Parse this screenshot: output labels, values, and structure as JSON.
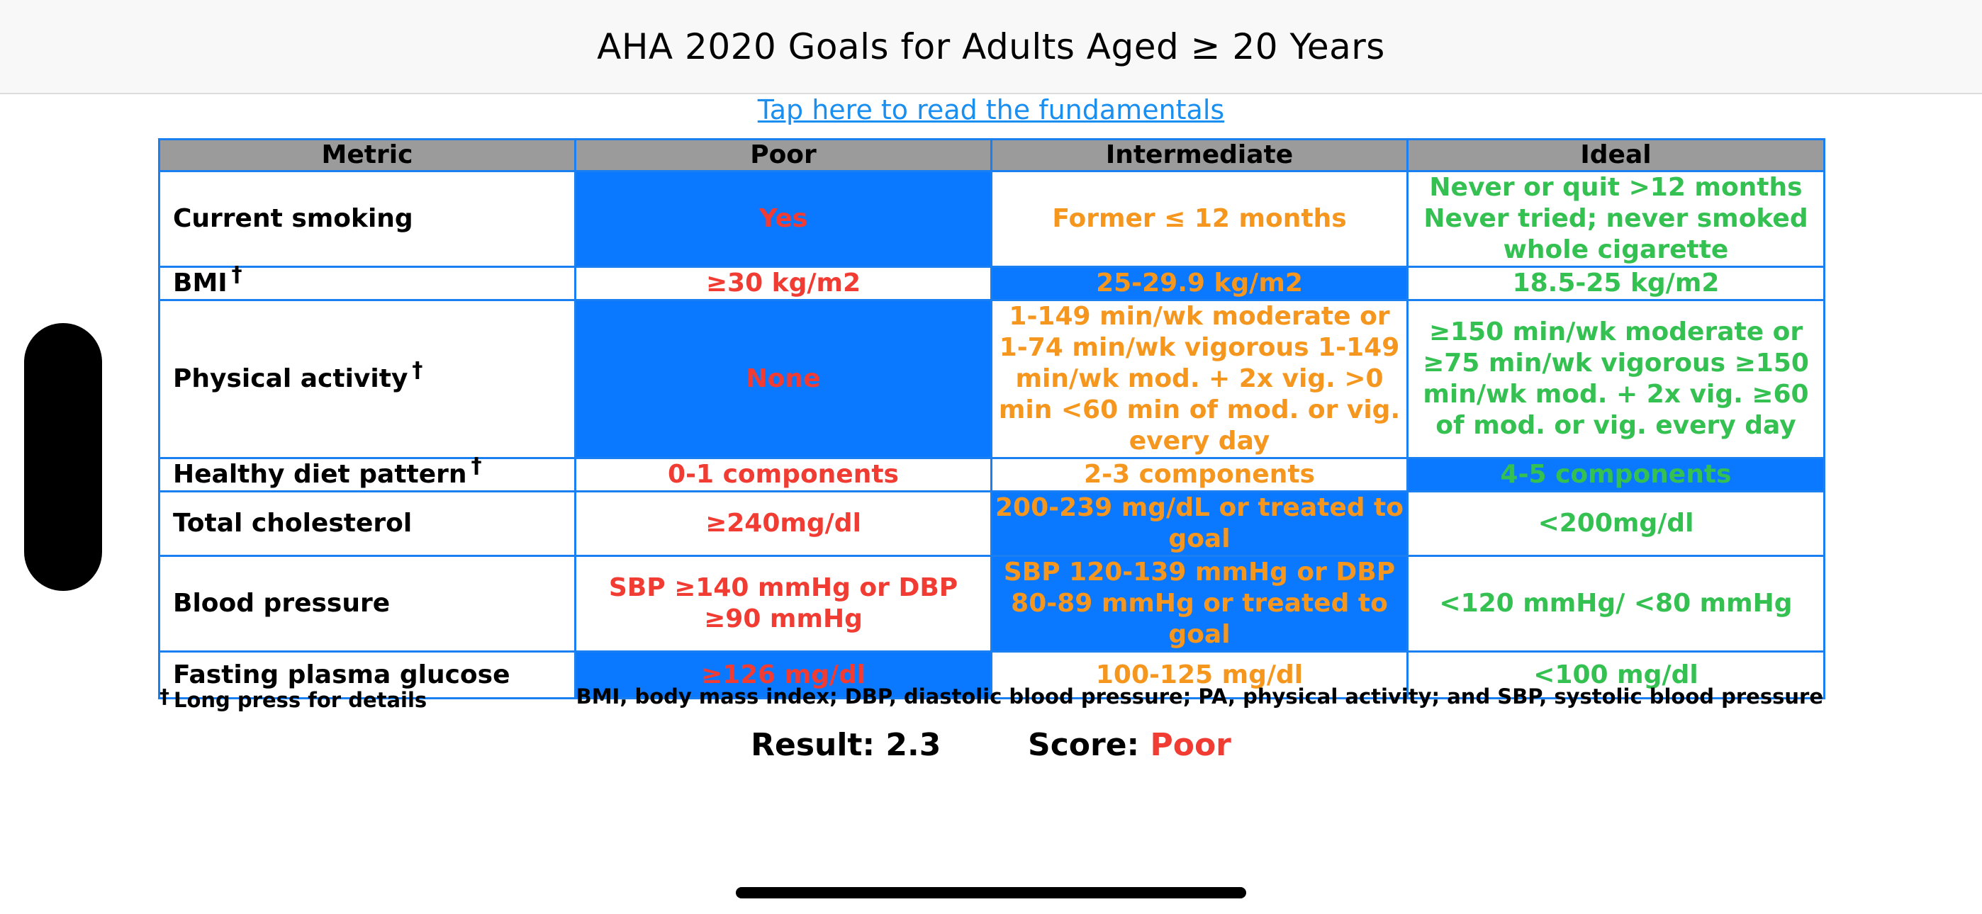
{
  "nav": {
    "title": "AHA 2020 Goals for Adults Aged ≥ 20 Years"
  },
  "fundamentals_link": "Tap here to read the fundamentals",
  "table": {
    "headers": [
      "Metric",
      "Poor",
      "Intermediate",
      "Ideal"
    ],
    "rows": [
      {
        "metric": "Current smoking",
        "dagger": "",
        "poor": "Yes",
        "intermediate": "Former ≤ 12 months",
        "ideal": "Never or quit >12 months Never tried; never smoked whole cigarette",
        "selected": "poor"
      },
      {
        "metric": "BMI",
        "dagger": "†",
        "poor": "≥30 kg/m2",
        "intermediate": "25-29.9 kg/m2",
        "ideal": "18.5-25 kg/m2",
        "selected": "intermediate"
      },
      {
        "metric": "Physical activity",
        "dagger": "†",
        "poor": "None",
        "intermediate": "1-149 min/wk moderate or 1-74 min/wk vigorous 1-149 min/wk mod. + 2x vig. >0 min <60 min of mod. or vig. every day",
        "ideal": "≥150 min/wk moderate or ≥75 min/wk vigorous ≥150 min/wk mod. + 2x vig. ≥60 of mod. or vig. every day",
        "selected": "poor"
      },
      {
        "metric": "Healthy diet pattern",
        "dagger": "†",
        "poor": "0-1 components",
        "intermediate": "2-3 components",
        "ideal": "4-5 components",
        "selected": "ideal"
      },
      {
        "metric": "Total cholesterol",
        "dagger": "",
        "poor": "≥240mg/dl",
        "intermediate": "200-239 mg/dL or treated to goal",
        "ideal": "<200mg/dl",
        "selected": "intermediate"
      },
      {
        "metric": "Blood pressure",
        "dagger": "",
        "poor": "SBP ≥140 mmHg or DBP ≥90 mmHg",
        "intermediate": "SBP 120-139 mmHg or DBP 80-89 mmHg or treated to goal",
        "ideal": "<120 mmHg/ <80 mmHg",
        "selected": "intermediate"
      },
      {
        "metric": "Fasting plasma glucose",
        "dagger": "",
        "poor": "≥126 mg/dl",
        "intermediate": "100-125 mg/dl",
        "ideal": "<100 mg/dl",
        "selected": "poor"
      }
    ]
  },
  "footnotes": {
    "dagger": "†",
    "left": "Long press for details",
    "right": "BMI, body mass index; DBP, diastolic blood pressure; PA, physical activity; and SBP, systolic blood pressure"
  },
  "result": {
    "result_label": "Result:",
    "result_value": "2.3",
    "score_label": "Score:",
    "score_value": "Poor"
  },
  "colors": {
    "poor": "#f03c32",
    "intermediate": "#f5961e",
    "ideal": "#34c152",
    "selected_bg": "#0a78ff",
    "header_bg": "#9b9b9b",
    "border": "#1a7ff0",
    "link": "#1a8ff0"
  }
}
